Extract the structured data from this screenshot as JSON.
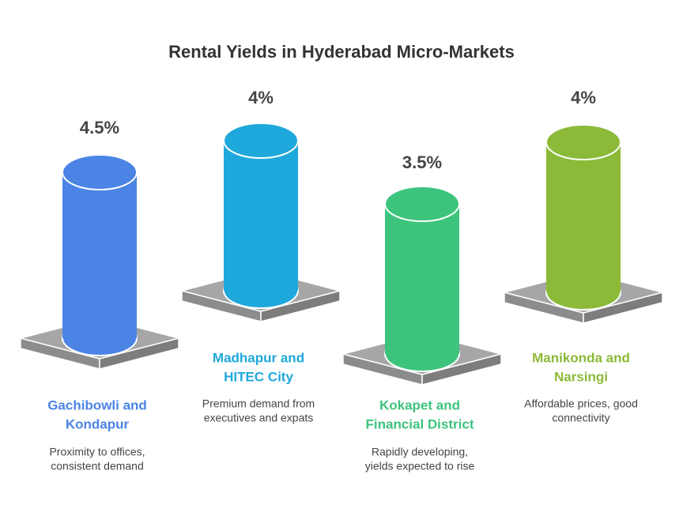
{
  "title": "Rental Yields in Hyderabad Micro-Markets",
  "items": [
    {
      "value_label": "4.5%",
      "name": [
        "Gachibowli and",
        "Kondapur"
      ],
      "description": [
        "Proximity to offices,",
        "consistent demand"
      ]
    },
    {
      "value_label": "4%",
      "name": [
        "Madhapur and",
        "HITEC City"
      ],
      "description": [
        "Premium demand from",
        "executives and expats"
      ]
    },
    {
      "value_label": "3.5%",
      "name": [
        "Kokapet and",
        "Financial District"
      ],
      "description": [
        "Rapidly developing,",
        "yields expected to rise"
      ]
    },
    {
      "value_label": "4%",
      "name": [
        "Manikonda and",
        "Narsingi"
      ],
      "description": [
        "Affordable prices, good",
        "connectivity"
      ]
    }
  ]
}
